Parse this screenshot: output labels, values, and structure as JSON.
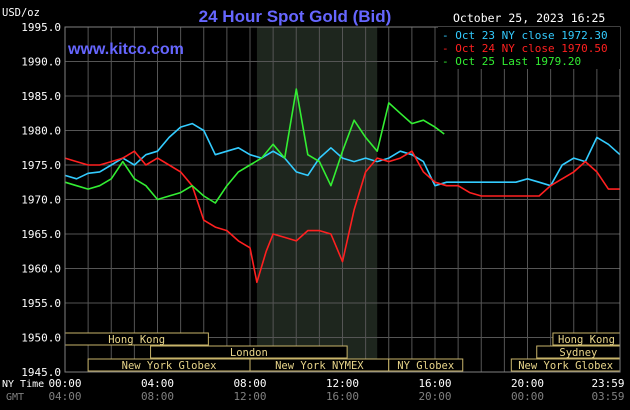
{
  "chart_data": {
    "type": "line",
    "title": "24 Hour Spot Gold (Bid)",
    "site": "www.kitco.com",
    "timestamp": "October 25, 2023 16:25",
    "y_unit_label": "USD/oz",
    "ylim": [
      1945,
      1995
    ],
    "y_ticks": [
      "1995.0",
      "1990.0",
      "1985.0",
      "1980.0",
      "1975.0",
      "1970.0",
      "1965.0",
      "1960.0",
      "1955.0",
      "1950.0",
      "1945.0"
    ],
    "y_tick_values": [
      1995,
      1990,
      1985,
      1980,
      1975,
      1970,
      1965,
      1960,
      1955,
      1950,
      1945
    ],
    "x_row1_label": "NY Time",
    "x_row2_label": "GMT",
    "x_ticks_ny": [
      "00:00",
      "04:00",
      "08:00",
      "12:00",
      "16:00",
      "20:00",
      "23:59"
    ],
    "x_ticks_gmt": [
      "04:00",
      "08:00",
      "12:00",
      "16:00",
      "20:00",
      "00:00",
      "03:59"
    ],
    "x_tick_hours": [
      0,
      4,
      8,
      12,
      16,
      20,
      23.983
    ],
    "xlim": [
      0,
      24
    ],
    "shaded_hours": [
      8.3,
      13.5
    ],
    "grid": true,
    "legend_position": "top-right",
    "series": [
      {
        "name": "Oct 23 NY close 1972.30",
        "color": "#33ccff",
        "x": [
          0,
          0.5,
          1,
          1.5,
          2,
          2.5,
          3,
          3.5,
          4,
          4.5,
          5,
          5.5,
          6,
          6.5,
          7,
          7.5,
          8,
          8.5,
          9,
          9.5,
          10,
          10.5,
          11,
          11.5,
          12,
          12.5,
          13,
          13.5,
          14,
          14.5,
          15,
          15.5,
          16,
          16.5,
          17,
          17.5,
          18,
          18.5,
          19,
          19.5,
          20,
          20.5,
          21,
          21.5,
          22,
          22.5,
          23,
          23.5,
          24
        ],
        "values": [
          1973.5,
          1973,
          1973.8,
          1974,
          1975,
          1976,
          1975,
          1976.5,
          1977,
          1979,
          1980.5,
          1981,
          1980,
          1976.5,
          1977,
          1977.5,
          1976.5,
          1976,
          1977,
          1976,
          1974,
          1973.5,
          1976,
          1977.5,
          1976,
          1975.5,
          1976,
          1975.5,
          1976,
          1977,
          1976.5,
          1975.5,
          1972,
          1972.5,
          1972.5,
          1972.5,
          1972.5,
          1972.5,
          1972.5,
          1972.5,
          1973,
          1972.5,
          1972,
          1975,
          1976,
          1975.5,
          1979,
          1978,
          1976.5
        ]
      },
      {
        "name": "Oct 24 NY close 1970.50",
        "color": "#ff2020",
        "x": [
          0,
          0.5,
          1,
          1.5,
          2,
          2.5,
          3,
          3.5,
          4,
          4.5,
          5,
          5.5,
          6,
          6.5,
          7,
          7.5,
          8,
          8.3,
          8.7,
          9,
          9.5,
          10,
          10.5,
          11,
          11.5,
          12,
          12.5,
          13,
          13.5,
          14,
          14.5,
          15,
          15.5,
          16,
          16.5,
          17,
          17.5,
          18,
          18.5,
          19,
          19.5,
          20,
          20.5,
          21,
          21.5,
          22,
          22.5,
          23,
          23.5,
          24
        ],
        "values": [
          1976,
          1975.5,
          1975,
          1975,
          1975.5,
          1976,
          1977,
          1975,
          1976,
          1975,
          1974,
          1972,
          1967,
          1966,
          1965.5,
          1964,
          1963,
          1958,
          1962.5,
          1965,
          1964.5,
          1964,
          1965.5,
          1965.5,
          1965,
          1961,
          1968.5,
          1974,
          1976,
          1975.5,
          1976,
          1977,
          1974,
          1972.5,
          1972,
          1972,
          1971,
          1970.5,
          1970.5,
          1970.5,
          1970.5,
          1970.5,
          1970.5,
          1972,
          1973,
          1974,
          1975.5,
          1974,
          1971.5,
          1971.5
        ]
      },
      {
        "name": "Oct 25 Last 1979.20",
        "color": "#33ee33",
        "x": [
          0,
          0.5,
          1,
          1.5,
          2,
          2.5,
          3,
          3.5,
          4,
          4.5,
          5,
          5.5,
          6,
          6.5,
          7,
          7.5,
          8,
          8.5,
          9,
          9.5,
          10,
          10.5,
          11,
          11.5,
          12,
          12.5,
          13,
          13.5,
          14,
          14.5,
          15,
          15.5,
          16,
          16.4
        ],
        "values": [
          1972.5,
          1972,
          1971.5,
          1972,
          1973,
          1975.5,
          1973,
          1972,
          1970,
          1970.5,
          1971,
          1972,
          1970.5,
          1969.5,
          1972,
          1974,
          1975,
          1976,
          1978,
          1976,
          1986,
          1976.5,
          1975.5,
          1972,
          1977,
          1981.5,
          1979,
          1977,
          1984,
          1982.5,
          1981,
          1981.5,
          1980.5,
          1979.5
        ]
      }
    ],
    "sessions": {
      "upper_row": [
        {
          "label": "Hong Kong",
          "start": 0,
          "end": 6.2
        },
        {
          "label": "Hong Kong",
          "start": 21.1,
          "end": 24
        }
      ],
      "middle_row": [
        {
          "label": "London",
          "start": 3.7,
          "end": 12.2
        },
        {
          "label": "Sydney",
          "start": 20.4,
          "end": 24
        }
      ],
      "lower_row": [
        {
          "label": "New York Globex",
          "start": 1,
          "end": 8
        },
        {
          "label": "New York NYMEX",
          "start": 8,
          "end": 14
        },
        {
          "label": "NY Globex",
          "start": 14,
          "end": 17.2
        },
        {
          "label": "New York Globex",
          "start": 19.3,
          "end": 24
        }
      ]
    }
  }
}
